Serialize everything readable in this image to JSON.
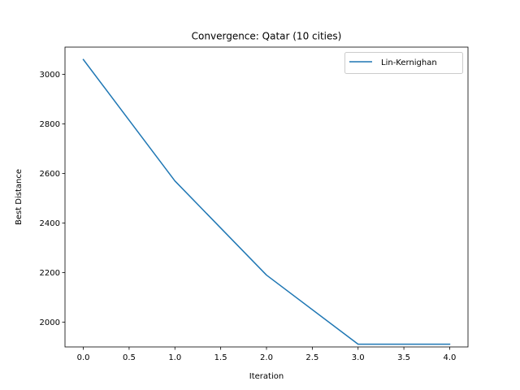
{
  "chart_data": {
    "type": "line",
    "title": "Convergence: Qatar (10 cities)",
    "xlabel": "Iteration",
    "ylabel": "Best Distance",
    "xlim": [
      -0.2,
      4.2
    ],
    "ylim": [
      1900,
      3110
    ],
    "xticks": [
      0.0,
      0.5,
      1.0,
      1.5,
      2.0,
      2.5,
      3.0,
      3.5,
      4.0
    ],
    "xtick_labels": [
      "0.0",
      "0.5",
      "1.0",
      "1.5",
      "2.0",
      "2.5",
      "3.0",
      "3.5",
      "4.0"
    ],
    "yticks": [
      2000,
      2200,
      2400,
      2600,
      2800,
      3000
    ],
    "ytick_labels": [
      "2000",
      "2200",
      "2400",
      "2600",
      "2800",
      "3000"
    ],
    "grid": false,
    "legend_position": "top-right",
    "series": [
      {
        "name": "Lin-Kernighan",
        "color": "#1f77b4",
        "x": [
          0,
          1,
          2,
          3,
          4
        ],
        "y": [
          3060,
          2570,
          2190,
          1911,
          1911
        ]
      }
    ]
  }
}
